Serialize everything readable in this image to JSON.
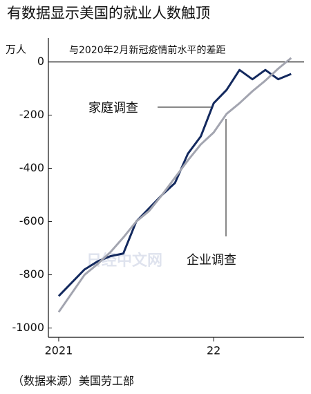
{
  "chart_data": {
    "type": "line",
    "title": "有数据显示美国的就业人数触顶",
    "subtitle": "与2020年2月新冠疫情前水平的差距",
    "y_unit": "万人",
    "source": "（数据来源）美国劳工部",
    "watermark": "日经中文网",
    "x": [
      0,
      1,
      2,
      3,
      4,
      5,
      6,
      7,
      8,
      9,
      10,
      11,
      12,
      13,
      14,
      15,
      16,
      17,
      18
    ],
    "xlim": [
      -0.8,
      19
    ],
    "xticks": [
      {
        "value": 0,
        "label": "2021"
      },
      {
        "value": 12,
        "label": "22"
      }
    ],
    "ylim": [
      -1035,
      90
    ],
    "yticks": [
      0,
      -200,
      -400,
      -600,
      -800,
      -1000
    ],
    "series": [
      {
        "name": "家庭调查",
        "color": "#13295e",
        "values": [
          -880,
          -830,
          -780,
          -750,
          -730,
          -720,
          -600,
          -550,
          -500,
          -455,
          -345,
          -280,
          -155,
          -105,
          -30,
          -65,
          -30,
          -65,
          -45
        ]
      },
      {
        "name": "企业调查",
        "color": "#a3a5b0",
        "values": [
          -940,
          -870,
          -800,
          -760,
          -715,
          -660,
          -600,
          -560,
          -500,
          -435,
          -370,
          -310,
          -265,
          -195,
          -155,
          -110,
          -70,
          -25,
          15
        ]
      }
    ]
  }
}
